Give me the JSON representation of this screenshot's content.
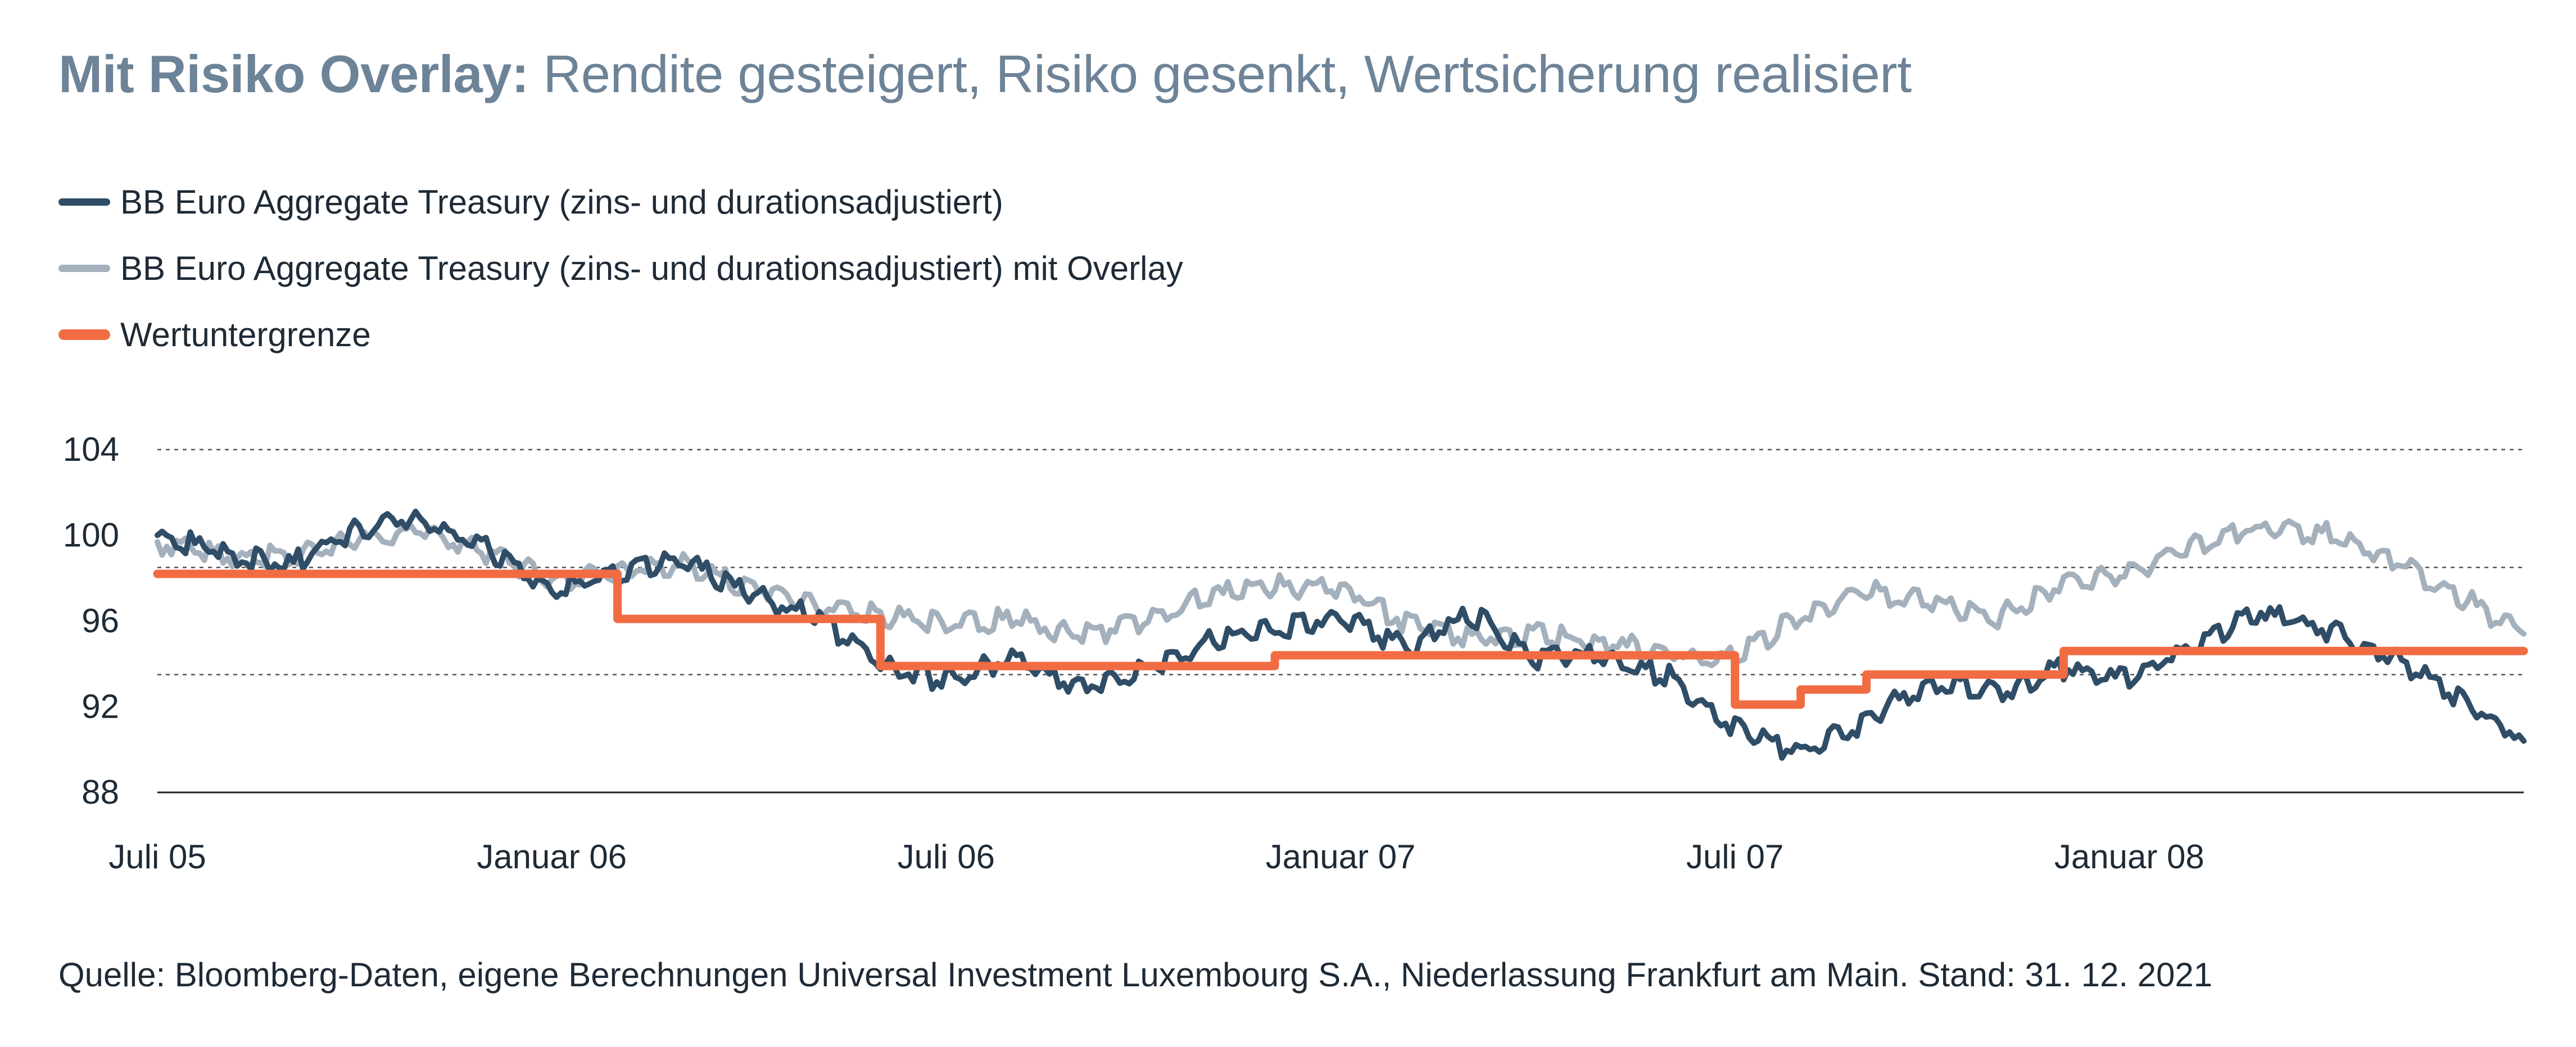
{
  "title": {
    "bold": "Mit Risiko Overlay:",
    "rest": " Rendite gesteigert, Risiko gesenkt, Wertsicherung realisiert"
  },
  "legend": [
    {
      "label": "BB Euro Aggregate Treasury (zins- und durationsadjustiert)",
      "color": "#2f4d66"
    },
    {
      "label": "BB Euro Aggregate Treasury (zins- und durationsadjustiert) mit Overlay",
      "color": "#a4b1bd"
    },
    {
      "label": "Wertuntergrenze",
      "color": "#f26c43"
    }
  ],
  "source": "Quelle: Bloomberg-Daten, eigene Berechnungen Universal Investment Luxembourg S.A., Niederlassung Frankfurt am Main. Stand: 31. 12. 2021",
  "chart_data": {
    "type": "line",
    "y_ticks": [
      "104",
      "100",
      "96",
      "92",
      "88"
    ],
    "x_ticks": [
      {
        "label": "Juli 05",
        "x": "2005-07"
      },
      {
        "label": "Januar 06",
        "x": "2006-01"
      },
      {
        "label": "Juli 06",
        "x": "2006-07"
      },
      {
        "label": "Januar 07",
        "x": "2007-01"
      },
      {
        "label": "Juli 07",
        "x": "2007-07"
      },
      {
        "label": "Januar 08",
        "x": "2008-01"
      }
    ],
    "ylim": [
      88,
      104
    ],
    "xlim": [
      "2005-07",
      "2008-07"
    ],
    "grid": "dashed horizontal lines at 104, 98.5, 93.5",
    "series": [
      {
        "name": "BB Euro Aggregate Treasury (zins- und durationsadjustiert)",
        "color": "#2f4d66",
        "points": [
          [
            "2005-07",
            100.0
          ],
          [
            "2005-08",
            99.2
          ],
          [
            "2005-09",
            98.6
          ],
          [
            "2005-10",
            100.3
          ],
          [
            "2005-11",
            100.8
          ],
          [
            "2005-12",
            99.4
          ],
          [
            "2006-01",
            97.4
          ],
          [
            "2006-02",
            98.2
          ],
          [
            "2006-03",
            98.8
          ],
          [
            "2006-04",
            97.3
          ],
          [
            "2006-05",
            96.2
          ],
          [
            "2006-06",
            93.9
          ],
          [
            "2006-07",
            93.2
          ],
          [
            "2006-08",
            94.3
          ],
          [
            "2006-09",
            92.9
          ],
          [
            "2006-10",
            93.8
          ],
          [
            "2006-11",
            95.0
          ],
          [
            "2006-12",
            95.6
          ],
          [
            "2007-01",
            96.2
          ],
          [
            "2007-02",
            94.7
          ],
          [
            "2007-03",
            96.3
          ],
          [
            "2007-04",
            94.3
          ],
          [
            "2007-05",
            94.4
          ],
          [
            "2007-06",
            93.4
          ],
          [
            "2007-07",
            91.0
          ],
          [
            "2007-08",
            89.8
          ],
          [
            "2007-09",
            91.4
          ],
          [
            "2007-10",
            93.2
          ],
          [
            "2007-11",
            92.6
          ],
          [
            "2007-12",
            93.8
          ],
          [
            "2008-01",
            93.2
          ],
          [
            "2008-02",
            95.0
          ],
          [
            "2008-03",
            96.4
          ],
          [
            "2008-04",
            95.6
          ],
          [
            "2008-05",
            94.4
          ],
          [
            "2008-06",
            92.4
          ],
          [
            "2008-07",
            90.4
          ]
        ]
      },
      {
        "name": "BB Euro Aggregate Treasury (zins- und durationsadjustiert) mit Overlay",
        "color": "#a4b1bd",
        "points": [
          [
            "2005-07",
            99.6
          ],
          [
            "2005-08",
            99.0
          ],
          [
            "2005-09",
            99.0
          ],
          [
            "2005-10",
            99.8
          ],
          [
            "2005-11",
            100.2
          ],
          [
            "2005-12",
            99.2
          ],
          [
            "2006-01",
            97.9
          ],
          [
            "2006-02",
            98.3
          ],
          [
            "2006-03",
            98.6
          ],
          [
            "2006-04",
            97.6
          ],
          [
            "2006-05",
            96.7
          ],
          [
            "2006-06",
            96.3
          ],
          [
            "2006-07",
            95.8
          ],
          [
            "2006-08",
            96.1
          ],
          [
            "2006-09",
            95.3
          ],
          [
            "2006-10",
            95.9
          ],
          [
            "2006-11",
            97.2
          ],
          [
            "2006-12",
            97.6
          ],
          [
            "2007-01",
            97.6
          ],
          [
            "2007-02",
            95.9
          ],
          [
            "2007-03",
            95.3
          ],
          [
            "2007-04",
            95.4
          ],
          [
            "2007-05",
            95.0
          ],
          [
            "2007-06",
            94.5
          ],
          [
            "2007-07",
            94.2
          ],
          [
            "2007-08",
            96.3
          ],
          [
            "2007-09",
            97.4
          ],
          [
            "2007-10",
            96.8
          ],
          [
            "2007-11",
            96.2
          ],
          [
            "2007-12",
            97.8
          ],
          [
            "2008-01",
            98.2
          ],
          [
            "2008-02",
            99.6
          ],
          [
            "2008-03",
            100.4
          ],
          [
            "2008-04",
            100.1
          ],
          [
            "2008-05",
            98.9
          ],
          [
            "2008-06",
            97.2
          ],
          [
            "2008-07",
            95.4
          ]
        ]
      },
      {
        "name": "Wertuntergrenze",
        "color": "#f26c43",
        "step": true,
        "points": [
          [
            "2005-07",
            98.2
          ],
          [
            "2006-02",
            98.2
          ],
          [
            "2006-02",
            96.1
          ],
          [
            "2006-06",
            96.1
          ],
          [
            "2006-06",
            93.9
          ],
          [
            "2006-12",
            93.9
          ],
          [
            "2006-12",
            94.4
          ],
          [
            "2007-07",
            94.4
          ],
          [
            "2007-07",
            92.1
          ],
          [
            "2007-08",
            92.1
          ],
          [
            "2007-08",
            92.8
          ],
          [
            "2007-09",
            92.8
          ],
          [
            "2007-09",
            93.5
          ],
          [
            "2007-12",
            93.5
          ],
          [
            "2007-12",
            94.6
          ],
          [
            "2008-07",
            94.6
          ]
        ]
      }
    ]
  }
}
